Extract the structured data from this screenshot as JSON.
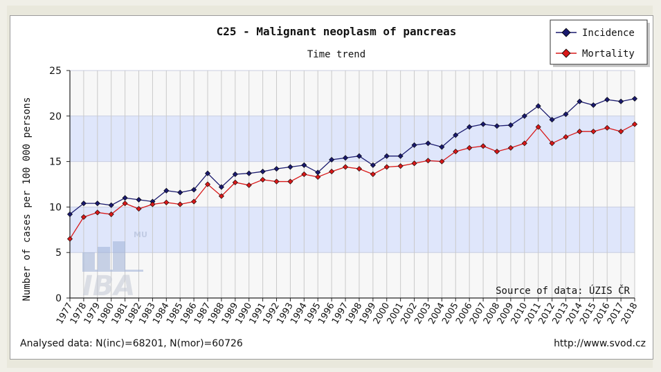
{
  "chart_data": {
    "type": "line",
    "title": "C25 - Malignant neoplasm of pancreas",
    "subtitle": "Time trend",
    "xlabel": "",
    "ylabel": "Number of cases per 100 000 persons",
    "ylim": [
      0,
      25
    ],
    "yticks": [
      "0",
      "5",
      "10",
      "15",
      "20",
      "25"
    ],
    "categories": [
      "1977",
      "1978",
      "1979",
      "1980",
      "1981",
      "1982",
      "1983",
      "1984",
      "1985",
      "1986",
      "1987",
      "1988",
      "1989",
      "1990",
      "1991",
      "1992",
      "1993",
      "1994",
      "1995",
      "1996",
      "1997",
      "1998",
      "1999",
      "2000",
      "2001",
      "2002",
      "2003",
      "2004",
      "2005",
      "2006",
      "2007",
      "2008",
      "2009",
      "2010",
      "2011",
      "2012",
      "2013",
      "2014",
      "2015",
      "2016",
      "2017",
      "2018"
    ],
    "series": [
      {
        "name": "Incidence",
        "color": "#1a1a6e",
        "values": [
          9.2,
          10.4,
          10.4,
          10.2,
          11.0,
          10.8,
          10.6,
          11.8,
          11.6,
          11.9,
          13.7,
          12.2,
          13.6,
          13.7,
          13.9,
          14.2,
          14.4,
          14.6,
          13.8,
          15.2,
          15.4,
          15.6,
          14.6,
          15.6,
          15.6,
          16.8,
          17.0,
          16.6,
          17.9,
          18.8,
          19.1,
          18.9,
          19.0,
          20.0,
          21.1,
          19.6,
          20.2,
          21.6,
          21.2,
          21.8,
          21.6,
          21.9
        ]
      },
      {
        "name": "Mortality",
        "color": "#d81818",
        "values": [
          6.5,
          8.9,
          9.4,
          9.2,
          10.4,
          9.8,
          10.3,
          10.5,
          10.3,
          10.6,
          12.5,
          11.2,
          12.7,
          12.4,
          13.0,
          12.8,
          12.8,
          13.6,
          13.3,
          13.9,
          14.4,
          14.2,
          13.6,
          14.4,
          14.5,
          14.8,
          15.1,
          15.0,
          16.1,
          16.5,
          16.7,
          16.1,
          16.5,
          17.0,
          18.8,
          17.0,
          17.7,
          18.3,
          18.3,
          18.7,
          18.3,
          19.1
        ]
      }
    ],
    "grid": true,
    "legend": "top-right",
    "source_note": "Source of data: ÚZIS ČR",
    "watermark": {
      "line1": "MU",
      "line2": "IBA"
    }
  },
  "footer": {
    "analysed": "Analysed data: N(inc)=68201, N(mor)=60726",
    "url": "http://www.svod.cz"
  }
}
